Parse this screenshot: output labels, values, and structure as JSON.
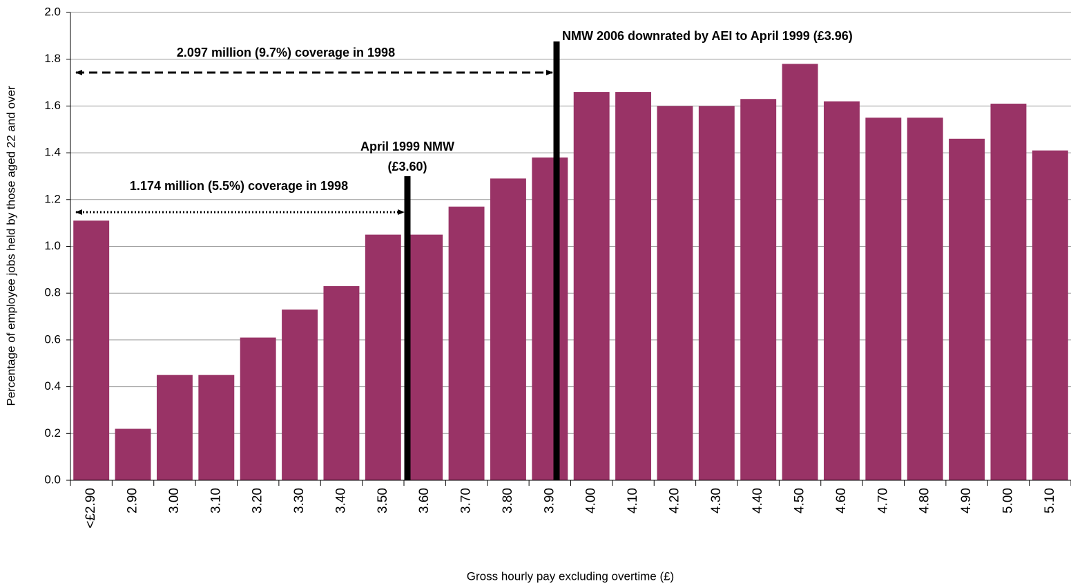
{
  "chart_data": {
    "type": "bar",
    "x_label": "Gross hourly pay excluding overtime (£)",
    "y_label": "Percentage of employee jobs held by those aged 22 and over",
    "categories": [
      "<£2.90",
      "2.90",
      "3.00",
      "3.10",
      "3.20",
      "3.30",
      "3.40",
      "3.50",
      "3.60",
      "3.70",
      "3.80",
      "3.90",
      "4.00",
      "4.10",
      "4.20",
      "4.30",
      "4.40",
      "4.50",
      "4.60",
      "4.70",
      "4.80",
      "4.90",
      "5.00",
      "5.10"
    ],
    "values": [
      1.11,
      0.22,
      0.45,
      0.45,
      0.61,
      0.73,
      0.83,
      1.05,
      1.05,
      1.17,
      1.29,
      1.38,
      1.66,
      1.66,
      1.6,
      1.6,
      1.63,
      1.78,
      1.62,
      1.55,
      1.55,
      1.46,
      1.61,
      1.41
    ],
    "color": "#993366",
    "ylim": [
      0,
      2
    ],
    "yticks": [
      {
        "value": 0,
        "label": "0.0"
      },
      0.2,
      0.4,
      0.6,
      0.8,
      {
        "value": 1,
        "label": "1.0"
      },
      1.2,
      1.4,
      1.6,
      1.8,
      {
        "value": 2,
        "label": "2.0"
      }
    ],
    "grid": true,
    "annotations": {
      "nmw_1999": [
        "April 1999 NMW",
        "(£3.60)"
      ],
      "nmw_2006": "NMW 2006 downrated by AEI to April 1999 (£3.96)",
      "coverage_1999": "1.174 million (5.5%) coverage in 1998",
      "coverage_2006": "2.097 million (9.7%) coverage in 1998"
    }
  }
}
